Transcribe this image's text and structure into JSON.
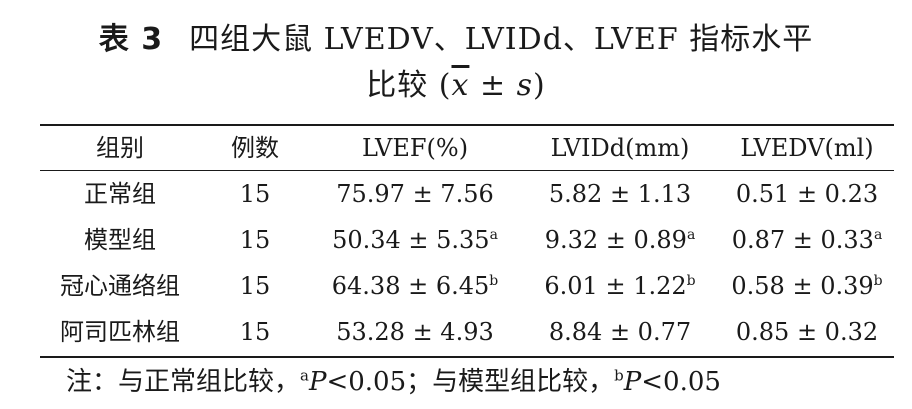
{
  "title": {
    "label": "表 3",
    "line1_text": "四组大鼠 LVEDV、LVIDd、LVEF 指标水平",
    "line2_prefix": "比较 (",
    "xbar": "x",
    "pm": " ± ",
    "s": "s",
    "line2_suffix": ")"
  },
  "table": {
    "headers": [
      "组别",
      "例数",
      "LVEF(%)",
      "LVIDd(mm)",
      "LVEDV(ml)"
    ],
    "rows": [
      {
        "group": "正常组",
        "n": "15",
        "lvef": "75.97 ± 7.56",
        "lvef_sup": "",
        "lvidd": "5.82 ± 1.13",
        "lvidd_sup": "",
        "lvedv": "0.51 ± 0.23",
        "lvedv_sup": ""
      },
      {
        "group": "模型组",
        "n": "15",
        "lvef": "50.34 ± 5.35",
        "lvef_sup": "a",
        "lvidd": "9.32 ± 0.89",
        "lvidd_sup": "a",
        "lvedv": "0.87 ± 0.33",
        "lvedv_sup": "a"
      },
      {
        "group": "冠心通络组",
        "n": "15",
        "lvef": "64.38 ± 6.45",
        "lvef_sup": "b",
        "lvidd": "6.01 ± 1.22",
        "lvidd_sup": "b",
        "lvedv": "0.58 ± 0.39",
        "lvedv_sup": "b"
      },
      {
        "group": "阿司匹林组",
        "n": "15",
        "lvef": "53.28 ± 4.93",
        "lvef_sup": "",
        "lvidd": "8.84 ± 0.77",
        "lvidd_sup": "",
        "lvedv": "0.85 ± 0.32",
        "lvedv_sup": ""
      }
    ]
  },
  "note": {
    "prefix": "注：与正常组比较，",
    "sup_a": "a",
    "p_a": "P",
    "val_a": "<0.05；与模型组比较，",
    "sup_b": "b",
    "p_b": "P",
    "val_b": "<0.05"
  }
}
